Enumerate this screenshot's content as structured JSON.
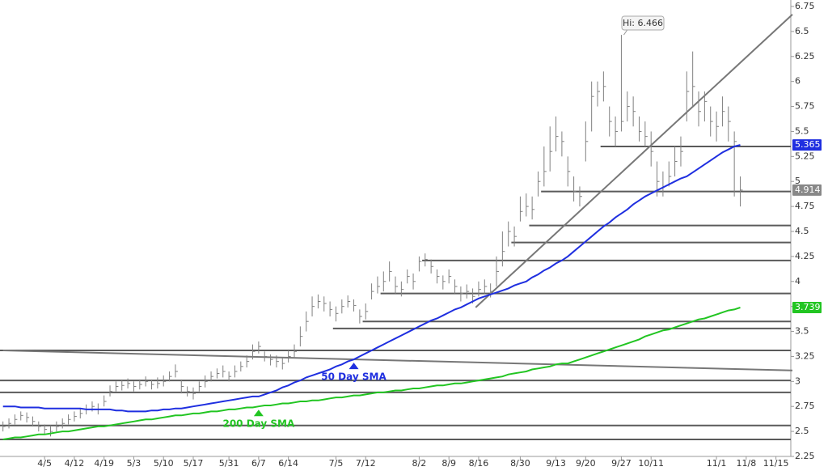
{
  "chart_data": {
    "type": "ohlc",
    "ylim": [
      2.25,
      6.75
    ],
    "yticks": [
      2.25,
      2.5,
      2.75,
      3,
      3.25,
      3.5,
      3.75,
      4,
      4.25,
      4.5,
      4.75,
      5,
      5.25,
      5.5,
      5.75,
      6,
      6.25,
      6.5,
      6.75
    ],
    "categories": [
      null,
      null,
      null,
      null,
      null,
      null,
      null,
      "4/5",
      null,
      null,
      null,
      null,
      "4/12",
      null,
      null,
      null,
      null,
      "4/19",
      null,
      null,
      null,
      null,
      "5/3",
      null,
      null,
      null,
      null,
      "5/10",
      null,
      null,
      null,
      null,
      "5/17",
      null,
      null,
      null,
      null,
      null,
      "5/31",
      null,
      null,
      null,
      null,
      "6/7",
      null,
      null,
      null,
      null,
      "6/14",
      null,
      null,
      null,
      null,
      null,
      null,
      null,
      "7/5",
      null,
      null,
      null,
      null,
      "7/12",
      null,
      null,
      null,
      null,
      null,
      null,
      null,
      null,
      "8/2",
      null,
      null,
      null,
      null,
      "8/9",
      null,
      null,
      null,
      null,
      "8/16",
      null,
      null,
      null,
      null,
      null,
      null,
      "8/30",
      null,
      null,
      null,
      null,
      null,
      "9/13",
      null,
      null,
      null,
      null,
      "9/20",
      null,
      null,
      null,
      null,
      null,
      "9/27",
      null,
      null,
      null,
      null,
      "10/11",
      null,
      null,
      null,
      null,
      null,
      null,
      null,
      null,
      null,
      null,
      "11/1",
      null,
      null,
      null,
      null,
      "11/8",
      null,
      null,
      null,
      null,
      "11/15",
      null,
      null
    ],
    "ohlc": {
      "color": "#808080",
      "high": [
        2.6,
        2.63,
        2.67,
        2.7,
        2.69,
        2.65,
        2.6,
        2.57,
        2.56,
        2.6,
        2.63,
        2.67,
        2.7,
        2.73,
        2.77,
        2.8,
        2.78,
        2.86,
        2.96,
        3.0,
        3.01,
        3.03,
        3.0,
        3.02,
        3.05,
        3.02,
        3.04,
        3.06,
        3.1,
        3.17,
        3.02,
        2.95,
        2.94,
        3.0,
        3.06,
        3.1,
        3.13,
        3.16,
        3.1,
        3.16,
        3.2,
        3.26,
        3.37,
        3.4,
        3.3,
        3.27,
        3.26,
        3.24,
        3.31,
        3.37,
        3.55,
        3.7,
        3.85,
        3.87,
        3.85,
        3.8,
        3.75,
        3.82,
        3.86,
        3.82,
        3.72,
        3.78,
        3.98,
        4.05,
        4.1,
        4.2,
        4.05,
        4.0,
        4.12,
        4.08,
        4.25,
        4.28,
        4.22,
        4.12,
        4.06,
        4.12,
        4.02,
        3.95,
        3.97,
        3.93,
        4.0,
        4.02,
        3.98,
        4.25,
        4.5,
        4.6,
        4.55,
        4.85,
        4.88,
        4.85,
        5.1,
        5.35,
        5.55,
        5.65,
        5.5,
        5.25,
        5.05,
        4.95,
        5.6,
        6.0,
        6.0,
        6.1,
        5.75,
        5.65,
        6.466,
        5.9,
        5.85,
        5.65,
        5.6,
        5.5,
        5.2,
        5.1,
        5.2,
        5.35,
        5.45,
        6.1,
        6.3,
        5.9,
        5.9,
        5.75,
        5.7,
        5.85,
        5.75,
        5.5,
        5.05,
        null,
        null,
        null,
        null,
        null,
        null,
        null,
        null
      ],
      "low": [
        2.5,
        2.53,
        2.57,
        2.61,
        2.59,
        2.55,
        2.5,
        2.47,
        2.45,
        2.5,
        2.53,
        2.57,
        2.6,
        2.63,
        2.67,
        2.7,
        2.67,
        2.75,
        2.85,
        2.9,
        2.91,
        2.93,
        2.9,
        2.92,
        2.95,
        2.92,
        2.93,
        2.95,
        3.0,
        3.04,
        2.88,
        2.85,
        2.82,
        2.9,
        2.94,
        3.0,
        3.03,
        3.04,
        3.0,
        3.04,
        3.1,
        3.14,
        3.22,
        3.28,
        3.2,
        3.16,
        3.14,
        3.12,
        3.19,
        3.23,
        3.35,
        3.5,
        3.65,
        3.73,
        3.7,
        3.65,
        3.6,
        3.68,
        3.74,
        3.7,
        3.58,
        3.62,
        3.82,
        3.88,
        3.9,
        4.0,
        3.88,
        3.85,
        3.98,
        3.92,
        4.1,
        4.15,
        4.08,
        3.98,
        3.92,
        3.98,
        3.88,
        3.8,
        3.83,
        3.78,
        3.85,
        3.88,
        3.84,
        3.95,
        4.15,
        4.35,
        4.35,
        4.6,
        4.65,
        4.62,
        4.85,
        4.95,
        5.1,
        5.3,
        5.25,
        4.95,
        4.8,
        4.75,
        5.2,
        5.5,
        5.75,
        5.8,
        5.45,
        5.35,
        5.5,
        5.6,
        5.55,
        5.4,
        5.35,
        5.15,
        4.85,
        4.85,
        4.95,
        5.05,
        5.15,
        5.6,
        5.75,
        5.55,
        5.6,
        5.45,
        5.4,
        5.55,
        5.4,
        4.85,
        4.75,
        null,
        null,
        null,
        null,
        null,
        null,
        null,
        null
      ],
      "close": [
        2.55,
        2.58,
        2.62,
        2.66,
        2.64,
        2.6,
        2.55,
        2.52,
        2.5,
        2.55,
        2.58,
        2.62,
        2.65,
        2.68,
        2.72,
        2.75,
        2.72,
        2.8,
        2.9,
        2.95,
        2.96,
        2.98,
        2.95,
        2.97,
        3.0,
        2.97,
        2.98,
        3.0,
        3.05,
        3.1,
        2.95,
        2.9,
        2.88,
        2.95,
        3.0,
        3.05,
        3.08,
        3.1,
        3.05,
        3.1,
        3.15,
        3.2,
        3.3,
        3.35,
        3.25,
        3.22,
        3.2,
        3.18,
        3.25,
        3.3,
        3.45,
        3.6,
        3.75,
        3.8,
        3.78,
        3.72,
        3.68,
        3.75,
        3.8,
        3.76,
        3.65,
        3.7,
        3.9,
        3.95,
        4.0,
        4.1,
        3.95,
        3.92,
        4.05,
        4.0,
        4.2,
        4.22,
        4.15,
        4.05,
        4.0,
        4.05,
        3.95,
        3.88,
        3.9,
        3.85,
        3.92,
        3.95,
        3.9,
        4.1,
        4.3,
        4.5,
        4.45,
        4.7,
        4.75,
        4.72,
        5.0,
        5.1,
        5.3,
        5.45,
        5.4,
        5.1,
        4.9,
        4.85,
        5.4,
        5.85,
        5.9,
        5.95,
        5.6,
        5.5,
        5.6,
        5.75,
        5.7,
        5.5,
        5.45,
        5.3,
        5.0,
        4.95,
        5.05,
        5.2,
        5.3,
        5.9,
        5.95,
        5.7,
        5.8,
        5.6,
        5.55,
        5.7,
        5.6,
        5.4,
        4.914,
        null,
        null,
        null,
        null,
        null,
        null,
        null,
        null
      ]
    },
    "series": [
      {
        "name": "50 Day SMA",
        "color": "#1f2fe0",
        "values": [
          2.75,
          2.75,
          2.75,
          2.74,
          2.74,
          2.74,
          2.74,
          2.73,
          2.73,
          2.73,
          2.73,
          2.73,
          2.73,
          2.73,
          2.72,
          2.72,
          2.72,
          2.72,
          2.72,
          2.71,
          2.71,
          2.7,
          2.7,
          2.7,
          2.7,
          2.71,
          2.71,
          2.72,
          2.72,
          2.73,
          2.73,
          2.74,
          2.75,
          2.76,
          2.77,
          2.78,
          2.79,
          2.8,
          2.81,
          2.82,
          2.83,
          2.84,
          2.85,
          2.85,
          2.87,
          2.89,
          2.91,
          2.94,
          2.96,
          2.99,
          3.01,
          3.04,
          3.06,
          3.08,
          3.1,
          3.12,
          3.15,
          3.17,
          3.2,
          3.22,
          3.25,
          3.28,
          3.31,
          3.34,
          3.37,
          3.4,
          3.43,
          3.46,
          3.49,
          3.52,
          3.55,
          3.58,
          3.61,
          3.63,
          3.66,
          3.69,
          3.72,
          3.74,
          3.77,
          3.8,
          3.83,
          3.85,
          3.87,
          3.89,
          3.91,
          3.93,
          3.96,
          3.98,
          4.0,
          4.04,
          4.07,
          4.11,
          4.14,
          4.18,
          4.21,
          4.25,
          4.3,
          4.35,
          4.4,
          4.45,
          4.5,
          4.55,
          4.59,
          4.64,
          4.68,
          4.72,
          4.77,
          4.81,
          4.85,
          4.88,
          4.91,
          4.94,
          4.97,
          5.0,
          5.03,
          5.05,
          5.09,
          5.13,
          5.17,
          5.21,
          5.25,
          5.29,
          5.32,
          5.35,
          5.365,
          null,
          null,
          null,
          null,
          null,
          null,
          null,
          null
        ]
      },
      {
        "name": "200 Day SMA",
        "color": "#22c522",
        "values": [
          2.42,
          2.43,
          2.44,
          2.44,
          2.45,
          2.46,
          2.47,
          2.47,
          2.48,
          2.49,
          2.5,
          2.5,
          2.51,
          2.52,
          2.53,
          2.54,
          2.55,
          2.55,
          2.56,
          2.57,
          2.58,
          2.59,
          2.6,
          2.61,
          2.62,
          2.62,
          2.63,
          2.64,
          2.65,
          2.66,
          2.66,
          2.67,
          2.68,
          2.68,
          2.69,
          2.7,
          2.7,
          2.71,
          2.72,
          2.72,
          2.73,
          2.74,
          2.74,
          2.75,
          2.76,
          2.76,
          2.77,
          2.78,
          2.78,
          2.79,
          2.8,
          2.8,
          2.81,
          2.81,
          2.82,
          2.83,
          2.84,
          2.84,
          2.85,
          2.86,
          2.86,
          2.87,
          2.88,
          2.89,
          2.89,
          2.9,
          2.91,
          2.91,
          2.92,
          2.93,
          2.93,
          2.94,
          2.95,
          2.96,
          2.96,
          2.97,
          2.98,
          2.98,
          2.99,
          3.0,
          3.01,
          3.02,
          3.03,
          3.04,
          3.05,
          3.07,
          3.08,
          3.09,
          3.1,
          3.12,
          3.13,
          3.14,
          3.15,
          3.17,
          3.18,
          3.18,
          3.2,
          3.22,
          3.24,
          3.26,
          3.28,
          3.3,
          3.32,
          3.34,
          3.36,
          3.38,
          3.4,
          3.42,
          3.45,
          3.47,
          3.49,
          3.51,
          3.52,
          3.54,
          3.56,
          3.58,
          3.6,
          3.62,
          3.63,
          3.65,
          3.67,
          3.69,
          3.71,
          3.72,
          3.739,
          null,
          null,
          null,
          null,
          null,
          null,
          null,
          null
        ]
      }
    ],
    "levels": [
      {
        "value": 2.42,
        "from": 0
      },
      {
        "value": 2.56,
        "from": 0
      },
      {
        "value": 2.89,
        "from": 0
      },
      {
        "value": 3.01,
        "from": 0
      },
      {
        "value": 3.31,
        "from": 0
      },
      {
        "value": 3.53,
        "from": 56
      },
      {
        "value": 3.6,
        "from": 61
      },
      {
        "value": 3.88,
        "from": 64
      },
      {
        "value": 4.21,
        "from": 71
      },
      {
        "value": 4.39,
        "from": 86
      },
      {
        "value": 4.56,
        "from": 89
      },
      {
        "value": 4.9,
        "from": 91
      },
      {
        "value": 5.35,
        "from": 101
      }
    ],
    "trendlines": [
      {
        "from": [
          79.5,
          3.74
        ],
        "to": [
          133,
          6.67
        ]
      },
      {
        "from": [
          0,
          3.31
        ],
        "to": [
          133,
          3.11
        ]
      }
    ],
    "annotations": {
      "high": "Hi: 6.466"
    }
  }
}
